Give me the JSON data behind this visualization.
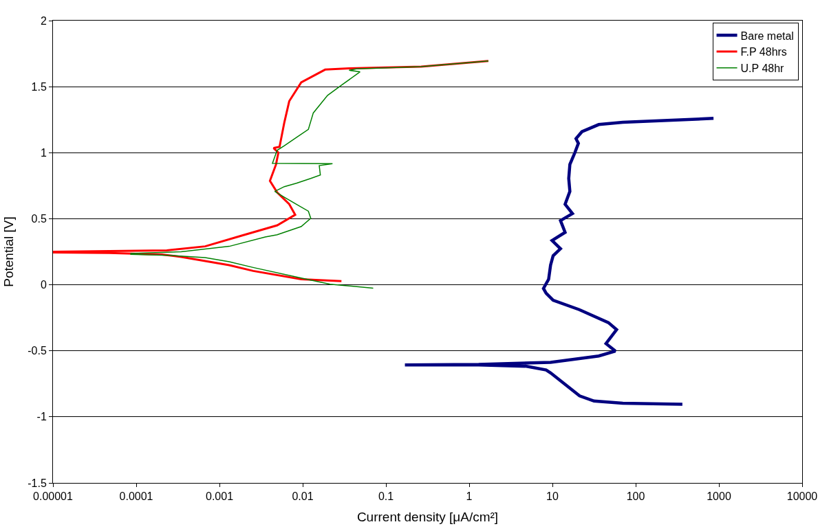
{
  "chart_data": {
    "type": "line",
    "xlabel": "Current density [μA/cm²]",
    "ylabel": "Potential [V]",
    "log": "x",
    "grid": "y",
    "legend": "top right",
    "line_style": "solid",
    "marker": "none",
    "xlim": [
      1e-05,
      10000
    ],
    "ylim": [
      -1.5,
      2
    ],
    "xticks": [
      {
        "value": 1e-05,
        "label": "0.00001"
      },
      {
        "value": 0.0001,
        "label": "0.0001"
      },
      {
        "value": 0.001,
        "label": "0.001"
      },
      {
        "value": 0.01,
        "label": "0.01"
      },
      {
        "value": 0.1,
        "label": "0.1"
      },
      1,
      10,
      100,
      1000,
      10000
    ],
    "yticks": [
      -1.5,
      -1,
      -0.5,
      0,
      0.5,
      1,
      1.5,
      2
    ],
    "series": [
      {
        "name": "Bare metal",
        "color": "#000080",
        "x": [
          364,
          70,
          31.6,
          21.2,
          9.5,
          8.4,
          4.9,
          1.3,
          0.169,
          1.3,
          9.5,
          36,
          57,
          44,
          59,
          47,
          21,
          10.2,
          8.4,
          7.8,
          9.0,
          9.5,
          10.2,
          12.5,
          9.9,
          14.2,
          12.5,
          17.4,
          14.2,
          16.2,
          15.7,
          16.2,
          18.6,
          20.5,
          19.2,
          22.6,
          36,
          70,
          861
        ],
        "values": [
          -0.904,
          -0.897,
          -0.88,
          -0.841,
          -0.667,
          -0.645,
          -0.617,
          -0.607,
          -0.607,
          -0.603,
          -0.587,
          -0.539,
          -0.502,
          -0.445,
          -0.339,
          -0.286,
          -0.188,
          -0.117,
          -0.064,
          -0.028,
          0.042,
          0.149,
          0.22,
          0.273,
          0.335,
          0.397,
          0.486,
          0.539,
          0.61,
          0.707,
          0.805,
          0.911,
          1.0,
          1.071,
          1.106,
          1.159,
          1.213,
          1.23,
          1.26
        ]
      },
      {
        "name": "F.P 48hrs",
        "color": "#ff0000",
        "x": [
          0.0292,
          0.0096,
          0.00254,
          0.00131,
          0.000347,
          0.000204,
          4.73e-05,
          1.03e-05,
          1.03e-05,
          4.73e-05,
          0.000233,
          0.000673,
          0.00182,
          0.00494,
          0.00813,
          0.00689,
          0.00493,
          0.00404,
          0.00478,
          0.0051,
          0.00447,
          0.00527,
          0.00602,
          0.00689,
          0.0096,
          0.0186,
          0.0361,
          0.265,
          1.7
        ],
        "values": [
          0.028,
          0.042,
          0.105,
          0.149,
          0.211,
          0.229,
          0.241,
          0.245,
          0.25,
          0.255,
          0.261,
          0.291,
          0.371,
          0.45,
          0.53,
          0.61,
          0.699,
          0.787,
          0.911,
          1.0,
          1.035,
          1.044,
          1.23,
          1.39,
          1.532,
          1.629,
          1.638,
          1.652,
          1.695
        ]
      },
      {
        "name": "U.P 48hr",
        "color": "#008000",
        "x": [
          0.0703,
          0.0213,
          0.0096,
          0.00254,
          0.00131,
          0.000673,
          0.000249,
          8.61e-05,
          8.61e-05,
          0.000347,
          0.00131,
          0.00354,
          0.00493,
          0.0096,
          0.0125,
          0.0117,
          0.0084,
          0.00602,
          0.00462,
          0.00602,
          0.0084,
          0.0125,
          0.0163,
          0.0158,
          0.0228,
          0.00433,
          0.00493,
          0.00602,
          0.0084,
          0.0117,
          0.0134,
          0.0199,
          0.0297,
          0.0488,
          0.0361,
          0.0441,
          0.265,
          1.7
        ],
        "values": [
          -0.025,
          0.004,
          0.051,
          0.131,
          0.175,
          0.206,
          0.223,
          0.23,
          0.237,
          0.25,
          0.291,
          0.362,
          0.379,
          0.441,
          0.503,
          0.557,
          0.61,
          0.663,
          0.707,
          0.743,
          0.769,
          0.805,
          0.831,
          0.902,
          0.917,
          0.92,
          1.018,
          1.053,
          1.115,
          1.177,
          1.301,
          1.434,
          1.514,
          1.612,
          1.624,
          1.635,
          1.652,
          1.695
        ]
      }
    ]
  }
}
